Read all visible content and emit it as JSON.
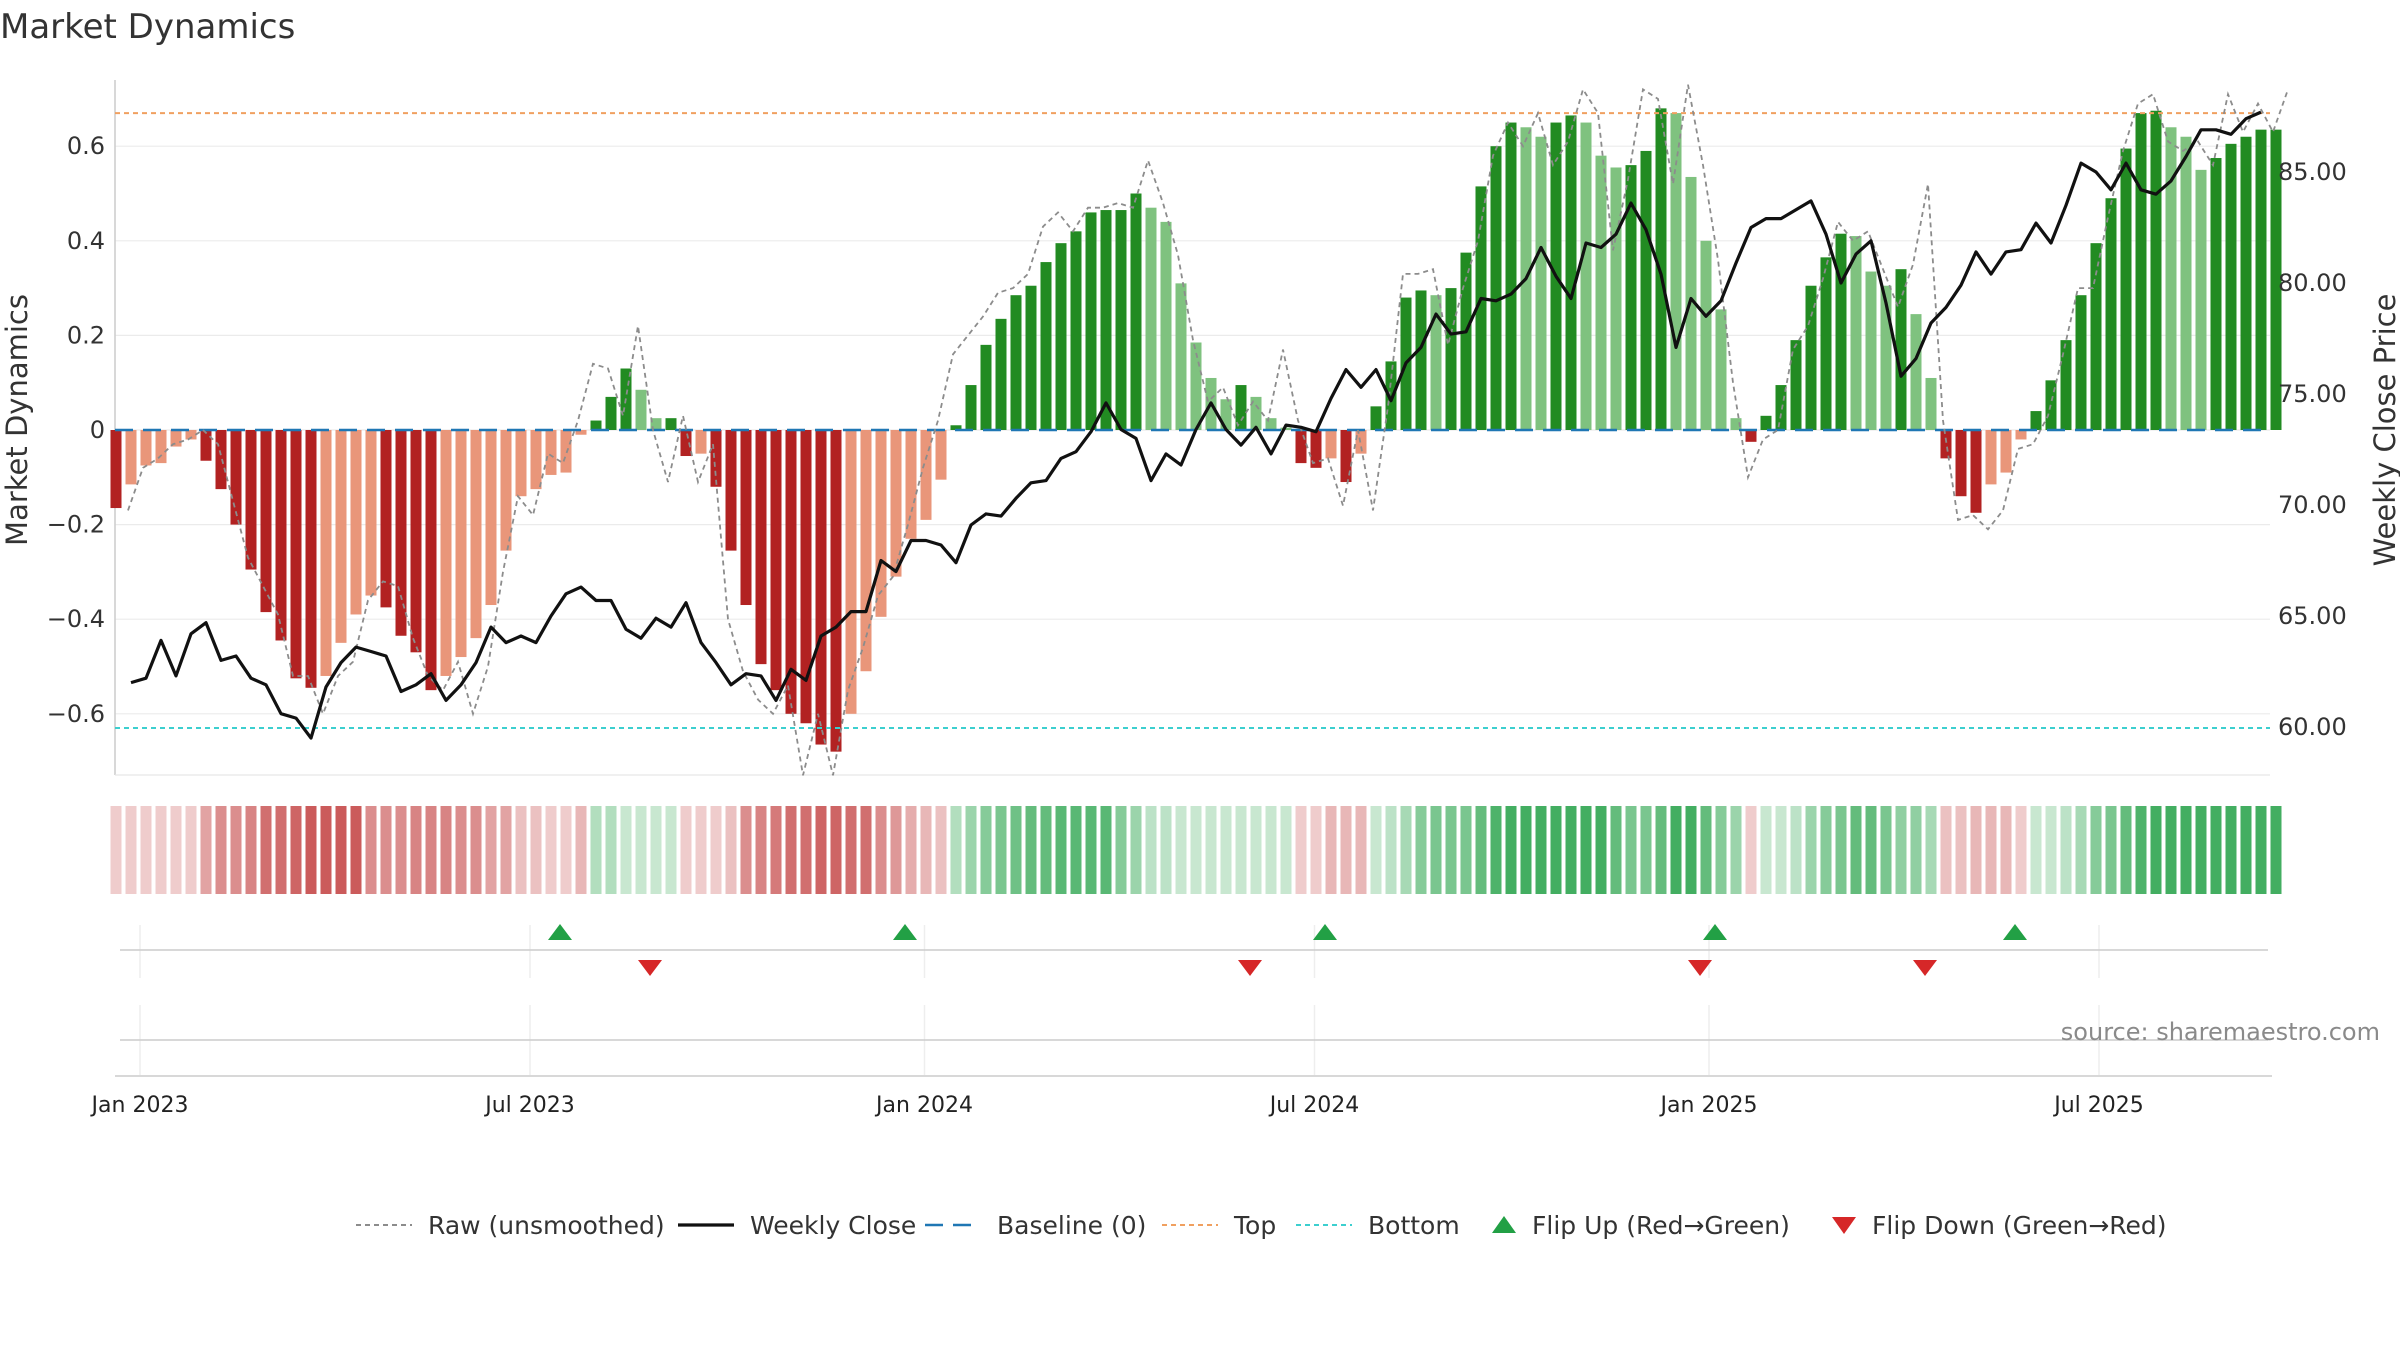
{
  "title": "Market Dynamics",
  "source": "source: sharemaestro.com",
  "chart_data": {
    "type": "bar",
    "ylabel": "Market Dynamics",
    "y2label": "Weekly Close Price",
    "ylim": [
      -0.73,
      0.74
    ],
    "y2lim": [
      57.5,
      90.3
    ],
    "yticks": [
      -0.6,
      -0.4,
      -0.2,
      0,
      0.2,
      0.4,
      0.6
    ],
    "yticklabels": [
      "−0.6",
      "−0.4",
      "−0.2",
      "0",
      "0.2",
      "0.4",
      "0.6"
    ],
    "y2ticks": [
      60,
      65,
      70,
      75,
      80,
      85
    ],
    "y2ticklabels": [
      "60.00",
      "65.00",
      "70.00",
      "75.00",
      "80.00",
      "85.00"
    ],
    "xtick_weeks": [
      0.0,
      26.0,
      52.3,
      78.3,
      104.6,
      130.6
    ],
    "xticklabels": [
      "Jan 2023",
      "Jul 2023",
      "Jan 2024",
      "Jul 2024",
      "Jan 2025",
      "Jul 2025"
    ],
    "top_line": 0.67,
    "bottom_line": -0.63,
    "baseline": 0,
    "grid": true,
    "legend_position": "bottom-center",
    "legend": [
      {
        "label": "Raw (unsmoothed)",
        "kind": "raw"
      },
      {
        "label": "Weekly Close",
        "kind": "close"
      },
      {
        "label": "Baseline (0)",
        "kind": "baseline"
      },
      {
        "label": "Top",
        "kind": "top"
      },
      {
        "label": "Bottom",
        "kind": "bottom"
      },
      {
        "label": "Flip Up (Red→Green)",
        "kind": "flipup"
      },
      {
        "label": "Flip Down (Green→Red)",
        "kind": "flipdown"
      }
    ],
    "colors": {
      "red_dark": "#b22222",
      "red_light": "#e9967a",
      "green_dark": "#228b22",
      "green_light": "#7fc27f",
      "close_line": "#111111",
      "raw_line": "#8c8c8c",
      "baseline": "#1f77b4",
      "top": "#f0a060",
      "bottom": "#3ccfcf",
      "flip_up": "#22a045",
      "flip_down": "#d62728"
    },
    "start_week": -1.6,
    "dynamics": [
      -0.165,
      -0.115,
      -0.075,
      -0.07,
      -0.035,
      -0.02,
      -0.065,
      -0.125,
      -0.2,
      -0.295,
      -0.385,
      -0.445,
      -0.525,
      -0.545,
      -0.52,
      -0.45,
      -0.39,
      -0.35,
      -0.375,
      -0.435,
      -0.47,
      -0.55,
      -0.52,
      -0.48,
      -0.44,
      -0.37,
      -0.255,
      -0.14,
      -0.125,
      -0.095,
      -0.09,
      -0.01,
      0.02,
      0.07,
      0.13,
      0.085,
      0.025,
      0.025,
      -0.055,
      -0.05,
      -0.12,
      -0.255,
      -0.37,
      -0.495,
      -0.55,
      -0.6,
      -0.62,
      -0.665,
      -0.68,
      -0.6,
      -0.51,
      -0.395,
      -0.31,
      -0.23,
      -0.19,
      -0.105,
      0.01,
      0.095,
      0.18,
      0.235,
      0.285,
      0.305,
      0.355,
      0.395,
      0.42,
      0.46,
      0.465,
      0.465,
      0.5,
      0.47,
      0.44,
      0.31,
      0.185,
      0.11,
      0.065,
      0.095,
      0.07,
      0.025,
      0.005,
      -0.07,
      -0.08,
      -0.06,
      -0.11,
      -0.05,
      0.05,
      0.145,
      0.28,
      0.295,
      0.285,
      0.3,
      0.375,
      0.515,
      0.6,
      0.65,
      0.64,
      0.62,
      0.65,
      0.665,
      0.65,
      0.58,
      0.555,
      0.56,
      0.59,
      0.68,
      0.67,
      0.535,
      0.4,
      0.255,
      0.025,
      -0.025,
      0.03,
      0.095,
      0.19,
      0.305,
      0.365,
      0.415,
      0.41,
      0.335,
      0.305,
      0.34,
      0.245,
      0.11,
      -0.06,
      -0.14,
      -0.175,
      -0.115,
      -0.09,
      -0.02,
      0.04,
      0.105,
      0.19,
      0.285,
      0.395,
      0.49,
      0.595,
      0.67,
      0.675,
      0.64,
      0.62,
      0.55,
      0.575,
      0.605,
      0.62,
      0.635,
      0.635
    ],
    "close_start_week": -0.6,
    "close": [
      62.0,
      62.2,
      63.9,
      62.3,
      64.2,
      64.7,
      63.0,
      63.2,
      62.2,
      61.9,
      60.6,
      60.4,
      59.5,
      61.8,
      62.9,
      63.6,
      63.4,
      63.2,
      61.6,
      61.9,
      62.4,
      61.2,
      61.9,
      62.9,
      64.5,
      63.8,
      64.1,
      63.8,
      65.0,
      66.0,
      66.3,
      65.7,
      65.7,
      64.4,
      64.0,
      64.9,
      64.5,
      65.6,
      63.8,
      62.9,
      61.9,
      62.4,
      62.3,
      61.2,
      62.6,
      62.1,
      64.1,
      64.5,
      65.2,
      65.2,
      67.5,
      67.0,
      68.4,
      68.4,
      68.2,
      67.4,
      69.1,
      69.6,
      69.5,
      70.3,
      71.0,
      71.1,
      72.1,
      72.4,
      73.3,
      74.6,
      73.4,
      73.0,
      71.1,
      72.3,
      71.8,
      73.4,
      74.6,
      73.4,
      72.7,
      73.5,
      72.3,
      73.6,
      73.5,
      73.3,
      74.8,
      76.1,
      75.3,
      76.1,
      74.7,
      76.4,
      77.1,
      78.6,
      77.7,
      77.8,
      79.3,
      79.2,
      79.5,
      80.2,
      81.6,
      80.3,
      79.3,
      81.8,
      81.6,
      82.2,
      83.6,
      82.4,
      80.4,
      77.1,
      79.3,
      78.5,
      79.2,
      80.9,
      82.5,
      82.9,
      82.9,
      83.3,
      83.7,
      82.2,
      80.0,
      81.3,
      81.9,
      79.1,
      75.8,
      76.6,
      78.2,
      78.9,
      79.9,
      81.4,
      80.4,
      81.4,
      81.5,
      82.7,
      81.8,
      83.5,
      85.4,
      85.0,
      84.2,
      85.4,
      84.2,
      84.0,
      84.6,
      85.7,
      86.9,
      86.9,
      86.7,
      87.4,
      87.7
    ],
    "raw_start_week": -0.8,
    "raw": [
      -0.17,
      -0.08,
      -0.06,
      -0.03,
      -0.02,
      0.0,
      -0.03,
      -0.15,
      -0.27,
      -0.33,
      -0.39,
      -0.52,
      -0.52,
      -0.6,
      -0.52,
      -0.49,
      -0.36,
      -0.32,
      -0.33,
      -0.44,
      -0.52,
      -0.55,
      -0.49,
      -0.6,
      -0.5,
      -0.3,
      -0.14,
      -0.18,
      -0.05,
      -0.07,
      0.02,
      0.14,
      0.13,
      0.03,
      0.22,
      0.0,
      -0.11,
      0.03,
      -0.11,
      -0.03,
      -0.4,
      -0.51,
      -0.57,
      -0.6,
      -0.54,
      -0.73,
      -0.6,
      -0.73,
      -0.55,
      -0.46,
      -0.35,
      -0.31,
      -0.2,
      -0.08,
      0.02,
      0.16,
      0.2,
      0.24,
      0.29,
      0.3,
      0.33,
      0.43,
      0.46,
      0.42,
      0.47,
      0.47,
      0.48,
      0.47,
      0.57,
      0.48,
      0.37,
      0.19,
      0.06,
      0.09,
      0.01,
      0.06,
      0.02,
      0.17,
      0.02,
      -0.07,
      -0.06,
      -0.16,
      0.0,
      -0.17,
      0.05,
      0.33,
      0.33,
      0.34,
      0.18,
      0.3,
      0.4,
      0.58,
      0.65,
      0.6,
      0.67,
      0.56,
      0.61,
      0.72,
      0.67,
      0.38,
      0.53,
      0.72,
      0.7,
      0.52,
      0.73,
      0.56,
      0.36,
      0.1,
      -0.1,
      -0.02,
      0.0,
      0.17,
      0.22,
      0.32,
      0.44,
      0.4,
      0.42,
      0.34,
      0.26,
      0.35,
      0.52,
      0.02,
      -0.19,
      -0.18,
      -0.21,
      -0.17,
      -0.04,
      -0.03,
      0.03,
      0.16,
      0.3,
      0.3,
      0.45,
      0.59,
      0.69,
      0.71,
      0.61,
      0.59,
      0.61,
      0.56,
      0.71,
      0.63,
      0.69,
      0.63,
      0.72
    ]
  },
  "regime_band": {
    "levels": [
      0.25,
      0.25,
      0.25,
      0.25,
      0.25,
      0.25,
      0.45,
      0.55,
      0.55,
      0.6,
      0.7,
      0.7,
      0.75,
      0.8,
      0.8,
      0.8,
      0.8,
      0.55,
      0.55,
      0.55,
      0.6,
      0.6,
      0.6,
      0.55,
      0.55,
      0.45,
      0.45,
      0.3,
      0.3,
      0.25,
      0.25,
      0.35,
      0.35,
      0.35,
      0.25,
      0.25,
      0.25,
      0.25,
      0.25,
      0.25,
      0.25,
      0.3,
      0.55,
      0.6,
      0.65,
      0.7,
      0.7,
      0.75,
      0.75,
      0.7,
      0.7,
      0.55,
      0.5,
      0.4,
      0.35,
      0.3,
      0.35,
      0.45,
      0.55,
      0.6,
      0.65,
      0.7,
      0.7,
      0.75,
      0.75,
      0.75,
      0.75,
      0.55,
      0.45,
      0.3,
      0.3,
      0.25,
      0.25,
      0.25,
      0.25,
      0.25,
      0.25,
      0.25,
      0.25,
      0.25,
      0.25,
      0.35,
      0.35,
      0.35,
      0.25,
      0.3,
      0.4,
      0.55,
      0.6,
      0.6,
      0.6,
      0.7,
      0.8,
      0.85,
      0.85,
      0.85,
      0.85,
      0.85,
      0.85,
      0.85,
      0.7,
      0.6,
      0.6,
      0.7,
      0.85,
      0.85,
      0.7,
      0.55,
      0.45,
      0.25,
      0.25,
      0.25,
      0.3,
      0.45,
      0.55,
      0.6,
      0.7,
      0.7,
      0.6,
      0.5,
      0.5,
      0.4,
      0.3,
      0.3,
      0.35,
      0.35,
      0.35,
      0.25,
      0.25,
      0.25,
      0.3,
      0.4,
      0.55,
      0.6,
      0.7,
      0.8,
      0.85,
      0.85,
      0.85,
      0.85,
      0.85,
      0.85,
      0.85,
      0.85,
      0.85
    ]
  },
  "flips": {
    "up_weeks": [
      28.0,
      51.0,
      79.0,
      105.0,
      125.0
    ],
    "down_weeks": [
      34.0,
      74.0,
      104.0,
      119.0
    ]
  }
}
